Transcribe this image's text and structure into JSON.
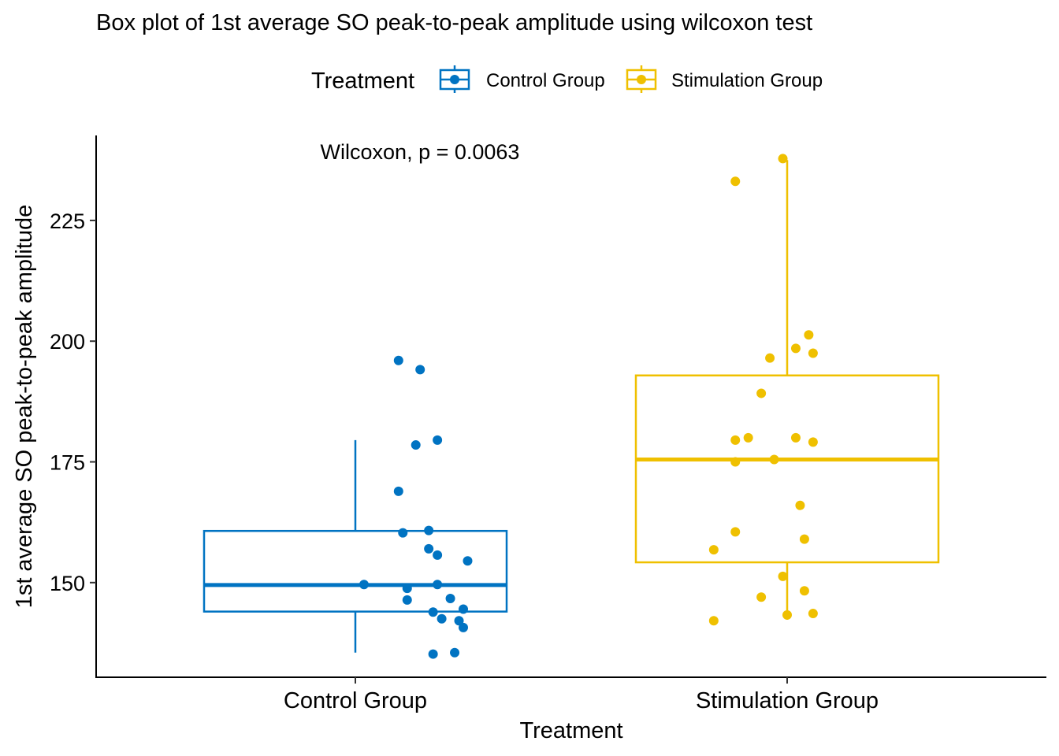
{
  "chart_data": {
    "type": "box",
    "title": "Box plot of 1st average SO peak-to-peak amplitude using wilcoxon test",
    "xlabel": "Treatment",
    "ylabel": "1st average SO peak-to-peak amplitude",
    "ylim": [
      130.4,
      242.6
    ],
    "yticks": [
      150,
      175,
      200,
      225
    ],
    "legend": {
      "title": "Treatment",
      "position": "top"
    },
    "annotation": "Wilcoxon, p = 0.0063",
    "categories": [
      "Control Group",
      "Stimulation Group"
    ],
    "series": [
      {
        "name": "Control Group",
        "color": "#0073C2",
        "box": {
          "whisker_low": 135.5,
          "q1": 144.0,
          "median": 149.5,
          "q3": 160.7,
          "whisker_high": 179.5
        },
        "points": [
          [
            0.1,
            196.0
          ],
          [
            0.15,
            194.1
          ],
          [
            0.14,
            178.5
          ],
          [
            0.19,
            179.5
          ],
          [
            0.1,
            168.9
          ],
          [
            0.11,
            160.3
          ],
          [
            0.17,
            160.8
          ],
          [
            0.17,
            157.0
          ],
          [
            0.19,
            155.7
          ],
          [
            0.26,
            154.5
          ],
          [
            0.02,
            149.6
          ],
          [
            0.12,
            148.8
          ],
          [
            0.19,
            149.6
          ],
          [
            0.12,
            146.4
          ],
          [
            0.22,
            146.7
          ],
          [
            0.18,
            143.9
          ],
          [
            0.25,
            144.5
          ],
          [
            0.2,
            142.5
          ],
          [
            0.24,
            142.1
          ],
          [
            0.25,
            140.7
          ],
          [
            0.23,
            135.5
          ],
          [
            0.18,
            135.2
          ]
        ]
      },
      {
        "name": "Stimulation Group",
        "color": "#EFC000",
        "box": {
          "whisker_low": 142.3,
          "q1": 154.2,
          "median": 175.5,
          "q3": 192.9,
          "whisker_high": 237.5
        },
        "points": [
          [
            0.88,
            233.1
          ],
          [
            0.99,
            237.8
          ],
          [
            0.96,
            196.5
          ],
          [
            1.02,
            198.5
          ],
          [
            1.05,
            201.3
          ],
          [
            1.06,
            197.5
          ],
          [
            0.94,
            189.2
          ],
          [
            0.88,
            179.5
          ],
          [
            0.91,
            180.0
          ],
          [
            1.02,
            180.0
          ],
          [
            1.06,
            179.1
          ],
          [
            0.88,
            175.0
          ],
          [
            0.97,
            175.5
          ],
          [
            1.03,
            166.0
          ],
          [
            0.88,
            160.5
          ],
          [
            0.83,
            156.8
          ],
          [
            1.04,
            159.0
          ],
          [
            0.99,
            151.3
          ],
          [
            0.94,
            147.0
          ],
          [
            1.04,
            148.3
          ],
          [
            0.83,
            142.1
          ],
          [
            1.0,
            143.3
          ],
          [
            1.06,
            143.6
          ]
        ]
      }
    ]
  }
}
